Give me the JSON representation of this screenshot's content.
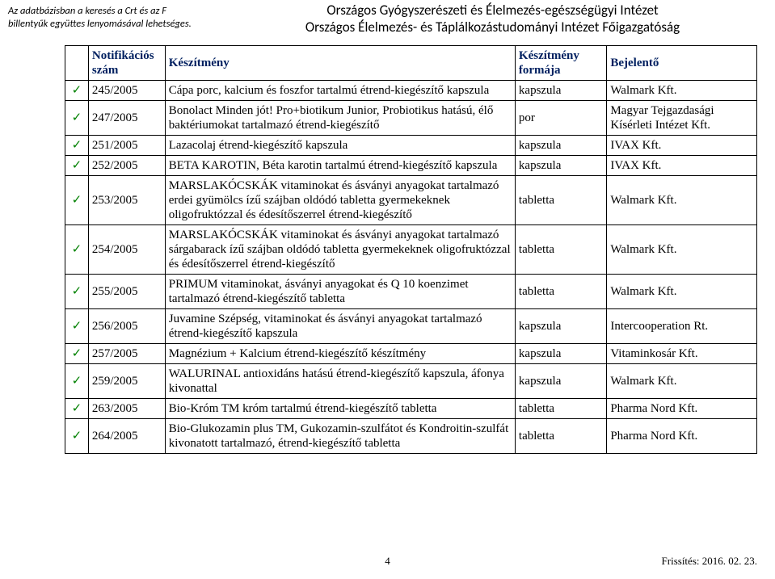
{
  "top_note": {
    "line1": "Az adatbázisban a keresés a Crt és az F",
    "line2": "billentyűk együttes lenyomásával lehetséges."
  },
  "header": {
    "line1": "Országos Gyógyszerészeti és Élelmezés-egészségügyi Intézet",
    "line2": "Országos Élelmezés- és Táplálkozástudományi Intézet Főigazgatóság"
  },
  "table": {
    "head": {
      "col_id": "Notifikációs szám",
      "col_name": "Készítmény",
      "col_form": "Készítmény formája",
      "col_rep": "Bejelentő"
    },
    "rows": [
      {
        "check": "✓",
        "id": "245/2005",
        "name": "Cápa porc, kalcium és foszfor tartalmú étrend-kiegészítő kapszula",
        "form": "kapszula",
        "rep": "Walmark Kft."
      },
      {
        "check": "✓",
        "id": "247/2005",
        "name": "Bonolact Minden jót! Pro+biotikum Junior, Probiotikus hatású, élő baktériumokat tartalmazó étrend-kiegészítő",
        "form": "por",
        "rep": "Magyar Tejgazdasági Kísérleti Intézet Kft."
      },
      {
        "check": "✓",
        "id": "251/2005",
        "name": "Lazacolaj étrend-kiegészítő kapszula",
        "form": "kapszula",
        "rep": "IVAX Kft."
      },
      {
        "check": "✓",
        "id": "252/2005",
        "name": "BETA KAROTIN, Béta karotin tartalmú étrend-kiegészítő kapszula",
        "form": "kapszula",
        "rep": "IVAX Kft."
      },
      {
        "check": "✓",
        "id": "253/2005",
        "name": "MARSLAKÓCSKÁK vitaminokat és ásványi anyagokat tartalmazó erdei gyümölcs ízű szájban oldódó tabletta gyermekeknek oligofruktózzal és édesítőszerrel étrend-kiegészítő",
        "form": "tabletta",
        "rep": "Walmark Kft."
      },
      {
        "check": "✓",
        "id": "254/2005",
        "name": "MARSLAKÓCSKÁK vitaminokat és ásványi anyagokat tartalmazó sárgabarack ízű szájban oldódó tabletta gyermekeknek oligofruktózzal és édesítőszerrel étrend-kiegészítő",
        "form": "tabletta",
        "rep": "Walmark Kft."
      },
      {
        "check": "✓",
        "id": "255/2005",
        "name": "PRIMUM vitaminokat, ásványi anyagokat és Q 10 koenzimet tartalmazó étrend-kiegészítő tabletta",
        "form": "tabletta",
        "rep": "Walmark Kft."
      },
      {
        "check": "✓",
        "id": "256/2005",
        "name": "Juvamine Szépség, vitaminokat és ásványi anyagokat tartalmazó étrend-kiegészítő kapszula",
        "form": "kapszula",
        "rep": "Intercooperation Rt."
      },
      {
        "check": "✓",
        "id": "257/2005",
        "name": "Magnézium + Kalcium étrend-kiegészítő készítmény",
        "form": "kapszula",
        "rep": "Vitaminkosár Kft."
      },
      {
        "check": "✓",
        "id": "259/2005",
        "name": "WALURINAL antioxidáns hatású étrend-kiegészítő kapszula, áfonya kivonattal",
        "form": "kapszula",
        "rep": "Walmark Kft."
      },
      {
        "check": "✓",
        "id": "263/2005",
        "name": "Bio-Króm TM króm tartalmú étrend-kiegészítő tabletta",
        "form": "tabletta",
        "rep": "Pharma Nord Kft."
      },
      {
        "check": "✓",
        "id": "264/2005",
        "name": "Bio-Glukozamin plus TM, Gukozamin-szulfátot és Kondroitin-szulfát kivonatott tartalmazó, étrend-kiegészítő tabletta",
        "form": "tabletta",
        "rep": "Pharma Nord Kft."
      }
    ]
  },
  "footer": {
    "page": "4",
    "right": "Frissítés: 2016. 02. 23."
  }
}
